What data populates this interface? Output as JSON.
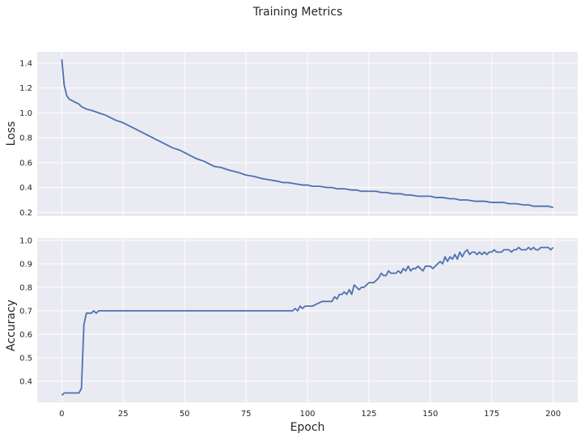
{
  "chart_data": {
    "type": "line",
    "title": "Training Metrics",
    "colors": {
      "series": "#4c72b0",
      "background": "#eaeaf2",
      "grid": "#ffffff"
    },
    "grid": true,
    "legend": "none",
    "subplots": [
      {
        "id": "loss",
        "ylabel": "Loss",
        "xlabel": "",
        "xlim": [
          -10,
          210
        ],
        "ylim": [
          0.17,
          1.49
        ],
        "xticks": [],
        "yticks": [
          0.2,
          0.4,
          0.6,
          0.8,
          1.0,
          1.2,
          1.4
        ],
        "ytick_labels": [
          "0.2",
          "0.4",
          "0.6",
          "0.8",
          "1.0",
          "1.2",
          "1.4"
        ],
        "x": [
          0,
          1,
          2,
          3,
          4,
          5,
          6,
          7,
          8,
          10,
          12,
          15,
          18,
          20,
          22,
          25,
          28,
          30,
          32,
          35,
          38,
          40,
          42,
          45,
          48,
          50,
          52,
          55,
          58,
          60,
          62,
          65,
          68,
          70,
          72,
          75,
          78,
          80,
          82,
          85,
          88,
          90,
          92,
          95,
          98,
          100,
          102,
          105,
          108,
          110,
          112,
          115,
          118,
          120,
          122,
          125,
          128,
          130,
          132,
          135,
          138,
          140,
          142,
          145,
          148,
          150,
          152,
          155,
          158,
          160,
          162,
          165,
          168,
          170,
          172,
          175,
          178,
          180,
          182,
          185,
          188,
          190,
          192,
          195,
          198,
          200
        ],
        "y": [
          1.43,
          1.22,
          1.14,
          1.11,
          1.1,
          1.09,
          1.08,
          1.07,
          1.05,
          1.03,
          1.02,
          1.0,
          0.98,
          0.96,
          0.94,
          0.92,
          0.89,
          0.87,
          0.85,
          0.82,
          0.79,
          0.77,
          0.75,
          0.72,
          0.7,
          0.68,
          0.66,
          0.63,
          0.61,
          0.59,
          0.57,
          0.56,
          0.54,
          0.53,
          0.52,
          0.5,
          0.49,
          0.48,
          0.47,
          0.46,
          0.45,
          0.44,
          0.44,
          0.43,
          0.42,
          0.42,
          0.41,
          0.41,
          0.4,
          0.4,
          0.39,
          0.39,
          0.38,
          0.38,
          0.37,
          0.37,
          0.37,
          0.36,
          0.36,
          0.35,
          0.35,
          0.34,
          0.34,
          0.33,
          0.33,
          0.33,
          0.32,
          0.32,
          0.31,
          0.31,
          0.3,
          0.3,
          0.29,
          0.29,
          0.29,
          0.28,
          0.28,
          0.28,
          0.27,
          0.27,
          0.26,
          0.26,
          0.25,
          0.25,
          0.25,
          0.24
        ]
      },
      {
        "id": "accuracy",
        "ylabel": "Accuracy",
        "xlabel": "Epoch",
        "xlim": [
          -10,
          210
        ],
        "ylim": [
          0.31,
          1.01
        ],
        "xticks": [
          0,
          25,
          50,
          75,
          100,
          125,
          150,
          175,
          200
        ],
        "xtick_labels": [
          "0",
          "25",
          "50",
          "75",
          "100",
          "125",
          "150",
          "175",
          "200"
        ],
        "yticks": [
          0.4,
          0.5,
          0.6,
          0.7,
          0.8,
          0.9,
          1.0
        ],
        "ytick_labels": [
          "0.4",
          "0.5",
          "0.6",
          "0.7",
          "0.8",
          "0.9",
          "1.0"
        ],
        "x": [
          0,
          1,
          2,
          3,
          4,
          5,
          6,
          7,
          8,
          9,
          10,
          11,
          12,
          13,
          14,
          15,
          20,
          30,
          40,
          50,
          60,
          70,
          80,
          90,
          94,
          95,
          96,
          97,
          98,
          99,
          100,
          102,
          104,
          106,
          108,
          110,
          111,
          112,
          113,
          114,
          115,
          116,
          117,
          118,
          119,
          120,
          121,
          122,
          123,
          124,
          125,
          127,
          128,
          129,
          130,
          131,
          132,
          133,
          134,
          135,
          136,
          137,
          138,
          139,
          140,
          141,
          142,
          143,
          144,
          145,
          146,
          147,
          148,
          149,
          150,
          151,
          152,
          153,
          154,
          155,
          156,
          157,
          158,
          159,
          160,
          161,
          162,
          163,
          164,
          165,
          166,
          167,
          168,
          169,
          170,
          171,
          172,
          173,
          174,
          175,
          176,
          177,
          178,
          179,
          180,
          181,
          182,
          183,
          184,
          185,
          186,
          187,
          188,
          189,
          190,
          191,
          192,
          193,
          194,
          195,
          196,
          197,
          198,
          199,
          200
        ],
        "y": [
          0.34,
          0.35,
          0.35,
          0.35,
          0.35,
          0.35,
          0.35,
          0.35,
          0.37,
          0.64,
          0.69,
          0.69,
          0.69,
          0.7,
          0.69,
          0.7,
          0.7,
          0.7,
          0.7,
          0.7,
          0.7,
          0.7,
          0.7,
          0.7,
          0.7,
          0.71,
          0.7,
          0.72,
          0.71,
          0.72,
          0.72,
          0.72,
          0.73,
          0.74,
          0.74,
          0.74,
          0.76,
          0.75,
          0.77,
          0.77,
          0.78,
          0.77,
          0.79,
          0.77,
          0.81,
          0.8,
          0.79,
          0.8,
          0.8,
          0.81,
          0.82,
          0.82,
          0.83,
          0.84,
          0.86,
          0.85,
          0.85,
          0.87,
          0.86,
          0.86,
          0.86,
          0.87,
          0.86,
          0.88,
          0.87,
          0.89,
          0.87,
          0.88,
          0.88,
          0.89,
          0.88,
          0.87,
          0.89,
          0.89,
          0.89,
          0.88,
          0.89,
          0.9,
          0.91,
          0.9,
          0.93,
          0.91,
          0.93,
          0.92,
          0.94,
          0.92,
          0.95,
          0.93,
          0.95,
          0.96,
          0.94,
          0.95,
          0.95,
          0.94,
          0.95,
          0.94,
          0.95,
          0.94,
          0.95,
          0.95,
          0.96,
          0.95,
          0.95,
          0.95,
          0.96,
          0.96,
          0.96,
          0.95,
          0.96,
          0.96,
          0.97,
          0.96,
          0.96,
          0.96,
          0.97,
          0.96,
          0.97,
          0.96,
          0.96,
          0.97,
          0.97,
          0.97,
          0.97,
          0.96,
          0.97
        ]
      }
    ]
  }
}
